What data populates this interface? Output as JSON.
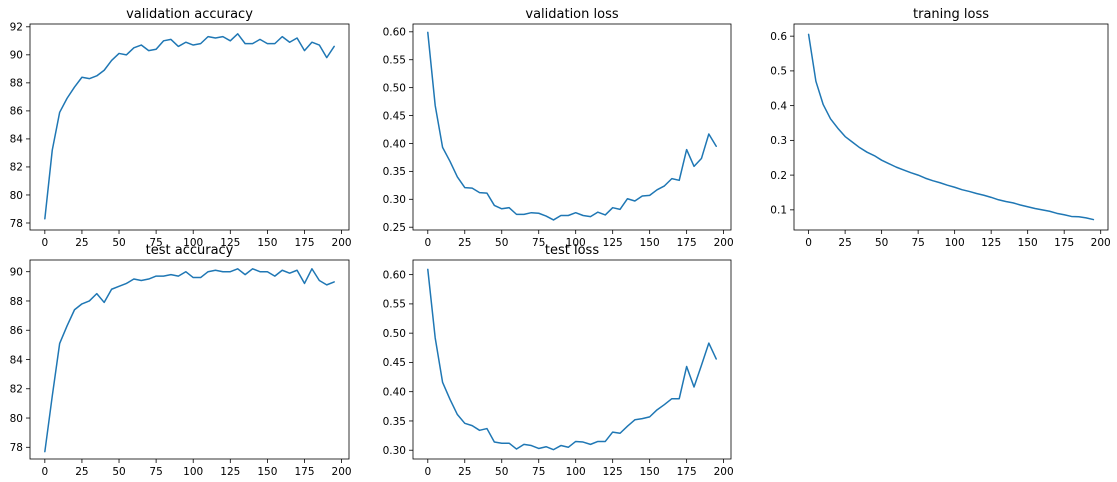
{
  "figure": {
    "line_color": "#1f77b4",
    "background": "#ffffff"
  },
  "chart_data": [
    {
      "type": "line",
      "title": "validation accuracy",
      "xlabel": "",
      "ylabel": "",
      "xlim": [
        -10,
        205
      ],
      "ylim": [
        77.5,
        92.2
      ],
      "xticks": [
        0,
        25,
        50,
        75,
        100,
        125,
        150,
        175,
        200
      ],
      "yticks": [
        78,
        80,
        82,
        84,
        86,
        88,
        90,
        92
      ],
      "xtick_labels": [
        "0",
        "25",
        "50",
        "75",
        "100",
        "125",
        "150",
        "175",
        "200"
      ],
      "ytick_labels": [
        "78",
        "80",
        "82",
        "84",
        "86",
        "88",
        "90",
        "92"
      ],
      "grid": false,
      "series": [
        {
          "x": [
            0,
            5,
            10,
            15,
            20,
            25,
            30,
            35,
            40,
            45,
            50,
            55,
            60,
            65,
            70,
            75,
            80,
            85,
            90,
            95,
            100,
            105,
            110,
            115,
            120,
            125,
            130,
            135,
            140,
            145,
            150,
            155,
            160,
            165,
            170,
            175,
            180,
            185,
            190,
            195
          ],
          "y": [
            78.3,
            83.2,
            85.9,
            86.9,
            87.7,
            88.4,
            88.3,
            88.5,
            88.9,
            89.6,
            90.1,
            90.0,
            90.5,
            90.7,
            90.3,
            90.4,
            91.0,
            91.1,
            90.6,
            90.9,
            90.7,
            90.8,
            91.3,
            91.2,
            91.3,
            91.0,
            91.5,
            90.8,
            90.8,
            91.1,
            90.8,
            90.8,
            91.3,
            90.9,
            91.2,
            90.3,
            90.9,
            90.7,
            89.8,
            90.6
          ]
        }
      ]
    },
    {
      "type": "line",
      "title": "validation loss",
      "xlabel": "",
      "ylabel": "",
      "xlim": [
        -10,
        205
      ],
      "ylim": [
        0.245,
        0.614
      ],
      "xticks": [
        0,
        25,
        50,
        75,
        100,
        125,
        150,
        175,
        200
      ],
      "yticks": [
        0.25,
        0.3,
        0.35,
        0.4,
        0.45,
        0.5,
        0.55,
        0.6
      ],
      "xtick_labels": [
        "0",
        "25",
        "50",
        "75",
        "100",
        "125",
        "150",
        "175",
        "200"
      ],
      "ytick_labels": [
        "0.25",
        "0.30",
        "0.35",
        "0.40",
        "0.45",
        "0.50",
        "0.55",
        "0.60"
      ],
      "grid": false,
      "series": [
        {
          "x": [
            0,
            5,
            10,
            15,
            20,
            25,
            30,
            35,
            40,
            45,
            50,
            55,
            60,
            65,
            70,
            75,
            80,
            85,
            90,
            95,
            100,
            105,
            110,
            115,
            120,
            125,
            130,
            135,
            140,
            145,
            150,
            155,
            160,
            165,
            170,
            175,
            180,
            185,
            190,
            195
          ],
          "y": [
            0.599,
            0.468,
            0.393,
            0.368,
            0.34,
            0.321,
            0.32,
            0.312,
            0.311,
            0.289,
            0.283,
            0.285,
            0.273,
            0.273,
            0.276,
            0.275,
            0.27,
            0.263,
            0.271,
            0.271,
            0.276,
            0.271,
            0.269,
            0.277,
            0.272,
            0.285,
            0.282,
            0.301,
            0.297,
            0.306,
            0.307,
            0.317,
            0.324,
            0.337,
            0.334,
            0.389,
            0.359,
            0.373,
            0.417,
            0.395
          ]
        }
      ]
    },
    {
      "type": "line",
      "title": "traning loss",
      "xlabel": "",
      "ylabel": "",
      "xlim": [
        -10,
        205
      ],
      "ylim": [
        0.042,
        0.635
      ],
      "xticks": [
        0,
        25,
        50,
        75,
        100,
        125,
        150,
        175,
        200
      ],
      "yticks": [
        0.1,
        0.2,
        0.3,
        0.4,
        0.5,
        0.6
      ],
      "xtick_labels": [
        "0",
        "25",
        "50",
        "75",
        "100",
        "125",
        "150",
        "175",
        "200"
      ],
      "ytick_labels": [
        "0.1",
        "0.2",
        "0.3",
        "0.4",
        "0.5",
        "0.6"
      ],
      "grid": false,
      "series": [
        {
          "x": [
            0,
            5,
            10,
            15,
            20,
            25,
            30,
            35,
            40,
            45,
            50,
            55,
            60,
            65,
            70,
            75,
            80,
            85,
            90,
            95,
            100,
            105,
            110,
            115,
            120,
            125,
            130,
            135,
            140,
            145,
            150,
            155,
            160,
            165,
            170,
            175,
            180,
            185,
            190,
            195
          ],
          "y": [
            0.605,
            0.47,
            0.403,
            0.362,
            0.335,
            0.311,
            0.295,
            0.279,
            0.266,
            0.256,
            0.243,
            0.233,
            0.223,
            0.215,
            0.207,
            0.2,
            0.191,
            0.184,
            0.178,
            0.171,
            0.165,
            0.158,
            0.153,
            0.147,
            0.142,
            0.136,
            0.129,
            0.124,
            0.12,
            0.114,
            0.109,
            0.104,
            0.1,
            0.096,
            0.09,
            0.086,
            0.081,
            0.08,
            0.077,
            0.072
          ]
        }
      ]
    },
    {
      "type": "line",
      "title": "test accuracy",
      "xlabel": "",
      "ylabel": "",
      "xlim": [
        -10,
        205
      ],
      "ylim": [
        77.2,
        90.8
      ],
      "xticks": [
        0,
        25,
        50,
        75,
        100,
        125,
        150,
        175,
        200
      ],
      "yticks": [
        78,
        80,
        82,
        84,
        86,
        88,
        90
      ],
      "xtick_labels": [
        "0",
        "25",
        "50",
        "75",
        "100",
        "125",
        "150",
        "175",
        "200"
      ],
      "ytick_labels": [
        "78",
        "80",
        "82",
        "84",
        "86",
        "88",
        "90"
      ],
      "grid": false,
      "series": [
        {
          "x": [
            0,
            5,
            10,
            15,
            20,
            25,
            30,
            35,
            40,
            45,
            50,
            55,
            60,
            65,
            70,
            75,
            80,
            85,
            90,
            95,
            100,
            105,
            110,
            115,
            120,
            125,
            130,
            135,
            140,
            145,
            150,
            155,
            160,
            165,
            170,
            175,
            180,
            185,
            190,
            195
          ],
          "y": [
            77.7,
            81.5,
            85.1,
            86.3,
            87.4,
            87.8,
            88.0,
            88.5,
            87.9,
            88.8,
            89.0,
            89.2,
            89.5,
            89.4,
            89.5,
            89.7,
            89.7,
            89.8,
            89.7,
            90.0,
            89.6,
            89.6,
            90.0,
            90.1,
            90.0,
            90.0,
            90.2,
            89.8,
            90.2,
            90.0,
            90.0,
            89.7,
            90.1,
            89.9,
            90.1,
            89.2,
            90.2,
            89.4,
            89.1,
            89.3
          ]
        }
      ]
    },
    {
      "type": "line",
      "title": "test loss",
      "xlabel": "",
      "ylabel": "",
      "xlim": [
        -10,
        205
      ],
      "ylim": [
        0.285,
        0.625
      ],
      "xticks": [
        0,
        25,
        50,
        75,
        100,
        125,
        150,
        175,
        200
      ],
      "yticks": [
        0.3,
        0.35,
        0.4,
        0.45,
        0.5,
        0.55,
        0.6
      ],
      "xtick_labels": [
        "0",
        "25",
        "50",
        "75",
        "100",
        "125",
        "150",
        "175",
        "200"
      ],
      "ytick_labels": [
        "0.30",
        "0.35",
        "0.40",
        "0.45",
        "0.50",
        "0.55",
        "0.60"
      ],
      "grid": false,
      "series": [
        {
          "x": [
            0,
            5,
            10,
            15,
            20,
            25,
            30,
            35,
            40,
            45,
            50,
            55,
            60,
            65,
            70,
            75,
            80,
            85,
            90,
            95,
            100,
            105,
            110,
            115,
            120,
            125,
            130,
            135,
            140,
            145,
            150,
            155,
            160,
            165,
            170,
            175,
            180,
            185,
            190,
            195
          ],
          "y": [
            0.609,
            0.492,
            0.416,
            0.387,
            0.361,
            0.346,
            0.342,
            0.334,
            0.337,
            0.314,
            0.312,
            0.312,
            0.302,
            0.31,
            0.308,
            0.303,
            0.306,
            0.301,
            0.308,
            0.305,
            0.315,
            0.314,
            0.31,
            0.315,
            0.315,
            0.331,
            0.329,
            0.341,
            0.352,
            0.354,
            0.357,
            0.369,
            0.378,
            0.388,
            0.388,
            0.443,
            0.408,
            0.445,
            0.483,
            0.456
          ]
        }
      ]
    }
  ]
}
